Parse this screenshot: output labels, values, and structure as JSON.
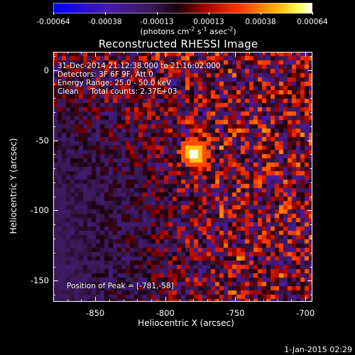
{
  "colorbar": {
    "labels": [
      "-0.00064",
      "-0.00038",
      "-0.00013",
      "0.00013",
      "0.00038",
      "0.00064"
    ],
    "units_prefix": "(photons cm",
    "units_exp1": "-2",
    "units_mid": " s",
    "units_exp2": "-1",
    "units_mid2": " asec",
    "units_exp3": "-2",
    "units_suffix": ")"
  },
  "title": "Reconstructed RHESSI Image",
  "annotations": {
    "line1": "31-Dec-2014 21:12:38.000 to 21:16:02.000",
    "line2": "Detectors: 3F 6F 9F, Att 0",
    "line3": "Energy Range: 25.0 - 50.0 keV",
    "line4": "Clean     Total counts: 2.37E+03",
    "peak": "Position of Peak = [-781,-58]"
  },
  "axes": {
    "xlabel": "Heliocentric X (arcsec)",
    "ylabel": "Heliocentric Y (arcsec)",
    "x_ticks": [
      "-850",
      "-800",
      "-750",
      "-700"
    ],
    "y_ticks": [
      "0",
      "-50",
      "-100",
      "-150"
    ]
  },
  "footer": "1-Jan-2015 02:29",
  "image": {
    "x_range": [
      -880,
      -695
    ],
    "y_range": [
      -165,
      13
    ],
    "peak_position": [
      -781,
      -58
    ],
    "colormap": "blue-purple-red-yellow-white",
    "value_range": [
      -0.00064,
      0.00064
    ]
  }
}
